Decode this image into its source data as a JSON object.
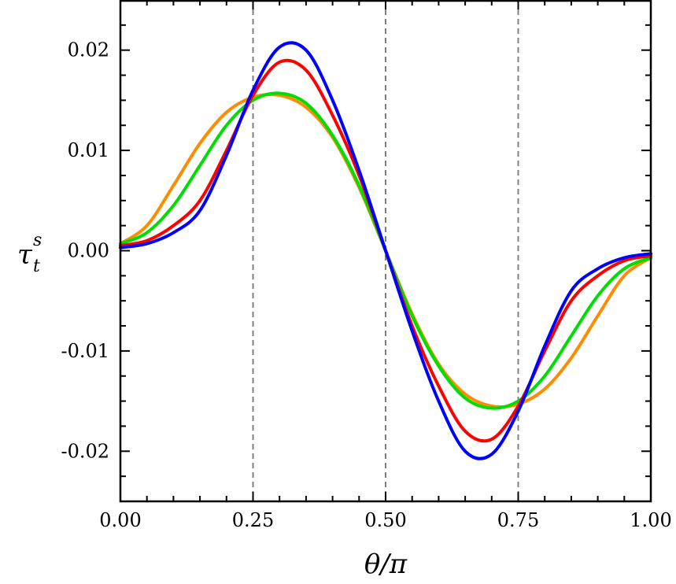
{
  "chart_data": {
    "type": "line",
    "title": "",
    "xlabel": "θ/π",
    "ylabel": {
      "main": "τ",
      "sub": "t",
      "sup": "s"
    },
    "xlim": [
      0.0,
      1.0
    ],
    "ylim": [
      -0.025,
      0.025
    ],
    "xticks": [
      0.0,
      0.25,
      0.5,
      0.75,
      1.0
    ],
    "xtick_labels": [
      "0.00",
      "0.25",
      "0.50",
      "0.75",
      "1.00"
    ],
    "yticks": [
      -0.02,
      -0.01,
      0.0,
      0.01,
      0.02
    ],
    "ytick_labels": [
      "-0.02",
      "-0.01",
      "0.00",
      "0.01",
      "0.02"
    ],
    "grid": false,
    "reference_lines_x": [
      0.25,
      0.5,
      0.75
    ],
    "series": [
      {
        "color": "#ff8c00",
        "x": [
          0.0,
          0.05,
          0.1,
          0.15,
          0.2,
          0.25,
          0.3,
          0.35,
          0.4,
          0.45,
          0.5,
          0.55,
          0.6,
          0.65,
          0.7,
          0.75,
          0.8,
          0.85,
          0.9,
          0.95,
          1.0
        ],
        "y": [
          0.0007,
          0.0025,
          0.0065,
          0.0107,
          0.0138,
          0.0153,
          0.0155,
          0.0143,
          0.0113,
          0.0063,
          0.0,
          -0.0063,
          -0.0113,
          -0.0143,
          -0.0155,
          -0.0153,
          -0.0138,
          -0.0107,
          -0.0065,
          -0.0025,
          -0.0007
        ]
      },
      {
        "color": "#00dd00",
        "x": [
          0.0,
          0.05,
          0.1,
          0.15,
          0.2,
          0.25,
          0.3,
          0.35,
          0.4,
          0.45,
          0.5,
          0.55,
          0.6,
          0.65,
          0.7,
          0.75,
          0.8,
          0.85,
          0.9,
          0.95,
          1.0
        ],
        "y": [
          0.0007,
          0.0018,
          0.0045,
          0.0085,
          0.0125,
          0.015,
          0.0157,
          0.0147,
          0.0115,
          0.0065,
          0.0,
          -0.0065,
          -0.0115,
          -0.0147,
          -0.0157,
          -0.015,
          -0.0125,
          -0.0085,
          -0.0045,
          -0.0018,
          -0.0007
        ]
      },
      {
        "color": "#ff0000",
        "x": [
          0.0,
          0.05,
          0.1,
          0.15,
          0.2,
          0.25,
          0.3,
          0.35,
          0.4,
          0.45,
          0.5,
          0.55,
          0.6,
          0.65,
          0.7,
          0.75,
          0.8,
          0.85,
          0.9,
          0.95,
          1.0
        ],
        "y": [
          0.0005,
          0.001,
          0.0025,
          0.005,
          0.01,
          0.0155,
          0.0188,
          0.018,
          0.0135,
          0.0075,
          0.0,
          -0.0075,
          -0.0135,
          -0.018,
          -0.0188,
          -0.0155,
          -0.01,
          -0.005,
          -0.0025,
          -0.001,
          -0.0005
        ]
      },
      {
        "color": "#0000ff",
        "x": [
          0.0,
          0.05,
          0.1,
          0.15,
          0.2,
          0.25,
          0.3,
          0.35,
          0.4,
          0.45,
          0.5,
          0.55,
          0.6,
          0.65,
          0.7,
          0.75,
          0.8,
          0.85,
          0.9,
          0.95,
          1.0
        ],
        "y": [
          0.0003,
          0.0007,
          0.0018,
          0.004,
          0.0095,
          0.016,
          0.0203,
          0.02,
          0.015,
          0.008,
          0.0,
          -0.008,
          -0.015,
          -0.02,
          -0.0203,
          -0.016,
          -0.0095,
          -0.004,
          -0.0018,
          -0.0007,
          -0.0003
        ]
      }
    ]
  }
}
